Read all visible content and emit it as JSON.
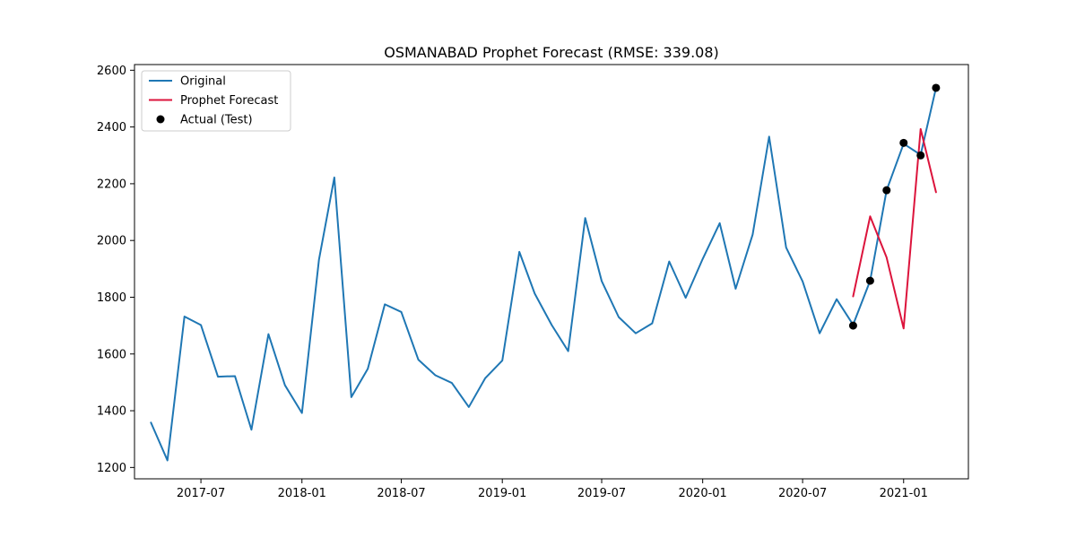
{
  "chart_data": {
    "type": "line",
    "title": "OSMANABAD Prophet Forecast (RMSE: 339.08)",
    "xlabel": "",
    "ylabel": "",
    "xlim": [
      "2017-03-02",
      "2021-04-29"
    ],
    "ylim": [
      1160,
      2620
    ],
    "x_ticks": [
      "2017-07",
      "2018-01",
      "2018-07",
      "2019-01",
      "2019-07",
      "2020-01",
      "2020-07",
      "2021-01"
    ],
    "y_ticks": [
      1200,
      1400,
      1600,
      1800,
      2000,
      2200,
      2400,
      2600
    ],
    "grid": false,
    "legend_position": "top-left",
    "series": [
      {
        "name": "Original",
        "kind": "line",
        "color": "#1f77b4",
        "x": [
          "2017-04-01",
          "2017-05-01",
          "2017-06-01",
          "2017-07-01",
          "2017-08-01",
          "2017-09-01",
          "2017-10-01",
          "2017-11-01",
          "2017-12-01",
          "2018-01-01",
          "2018-02-01",
          "2018-03-01",
          "2018-04-01",
          "2018-05-01",
          "2018-06-01",
          "2018-07-01",
          "2018-08-01",
          "2018-09-01",
          "2018-10-01",
          "2018-11-01",
          "2018-12-01",
          "2019-01-01",
          "2019-02-01",
          "2019-03-01",
          "2019-04-01",
          "2019-05-01",
          "2019-06-01",
          "2019-07-01",
          "2019-08-01",
          "2019-09-01",
          "2019-10-01",
          "2019-11-01",
          "2019-12-01",
          "2020-01-01",
          "2020-02-01",
          "2020-03-01",
          "2020-04-01",
          "2020-05-01",
          "2020-06-01",
          "2020-07-01",
          "2020-08-01",
          "2020-09-01",
          "2020-10-01",
          "2020-11-01",
          "2020-12-01",
          "2021-01-01",
          "2021-02-01",
          "2021-03-01"
        ],
        "y": [
          1358,
          1225,
          1732,
          1702,
          1520,
          1522,
          1333,
          1670,
          1490,
          1392,
          1932,
          2222,
          1448,
          1548,
          1775,
          1748,
          1580,
          1525,
          1498,
          1413,
          1515,
          1577,
          1960,
          1813,
          1702,
          1610,
          2079,
          1857,
          1730,
          1673,
          1708,
          1926,
          1798,
          1935,
          2061,
          1830,
          2021,
          2366,
          1975,
          1856,
          1673,
          1793,
          1703,
          1858,
          2177,
          2341,
          2302,
          2538
        ]
      },
      {
        "name": "Prophet Forecast",
        "kind": "line",
        "color": "#dc143c",
        "x": [
          "2020-10-01",
          "2020-11-01",
          "2020-12-01",
          "2021-01-01",
          "2021-02-01",
          "2021-03-01"
        ],
        "y": [
          1803,
          2085,
          1940,
          1690,
          2393,
          2170
        ]
      },
      {
        "name": "Actual (Test)",
        "kind": "scatter",
        "color": "#000000",
        "x": [
          "2020-10-01",
          "2020-11-01",
          "2020-12-01",
          "2021-01-01",
          "2021-02-01",
          "2021-03-01"
        ],
        "y": [
          1700,
          1858,
          2177,
          2344,
          2300,
          2538
        ]
      }
    ]
  }
}
